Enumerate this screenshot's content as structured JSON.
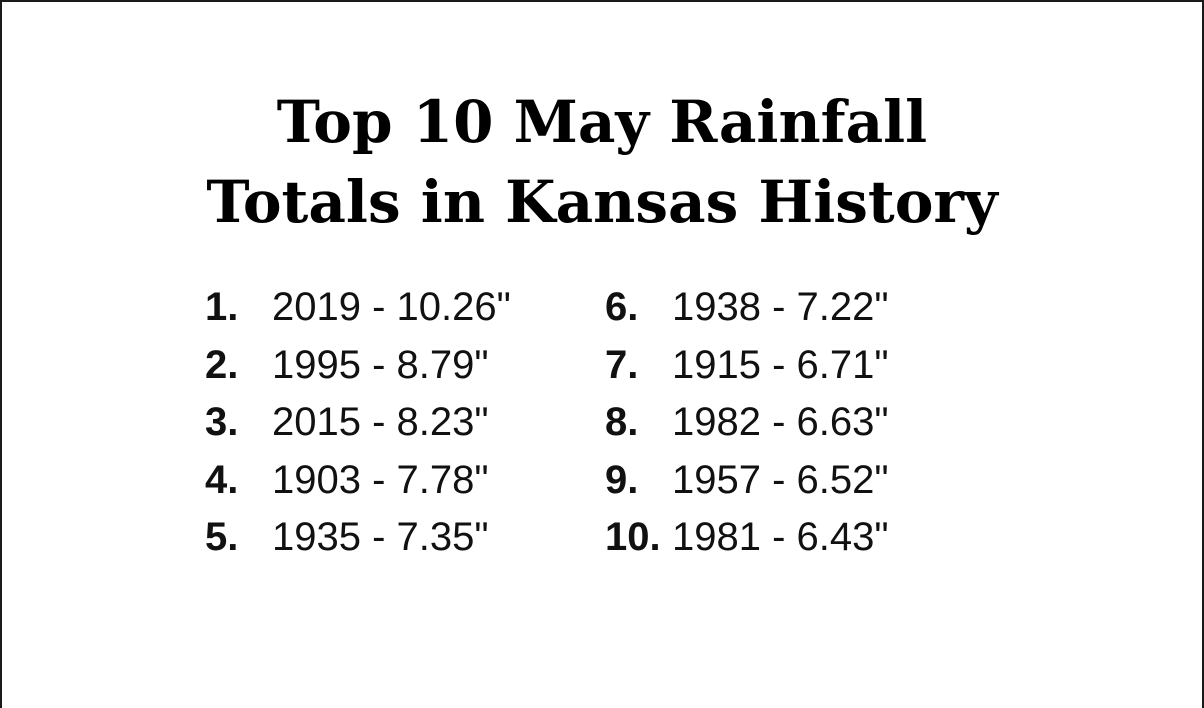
{
  "title": {
    "line1": "Top 10 May Rainfall",
    "line2": "Totals in Kansas History"
  },
  "items": [
    {
      "rank": "1.",
      "text": "2019 - 10.26\""
    },
    {
      "rank": "2.",
      "text": "1995 - 8.79\""
    },
    {
      "rank": "3.",
      "text": "2015 - 8.23\""
    },
    {
      "rank": "4.",
      "text": "1903 - 7.78\""
    },
    {
      "rank": "5.",
      "text": "1935 - 7.35\""
    },
    {
      "rank": "6.",
      "text": "1938 - 7.22\""
    },
    {
      "rank": "7.",
      "text": "1915 - 6.71\""
    },
    {
      "rank": "8.",
      "text": "1982 - 6.63\""
    },
    {
      "rank": "9.",
      "text": "1957 - 6.52\""
    },
    {
      "rank": "10.",
      "text": "1981 - 6.43\""
    }
  ]
}
